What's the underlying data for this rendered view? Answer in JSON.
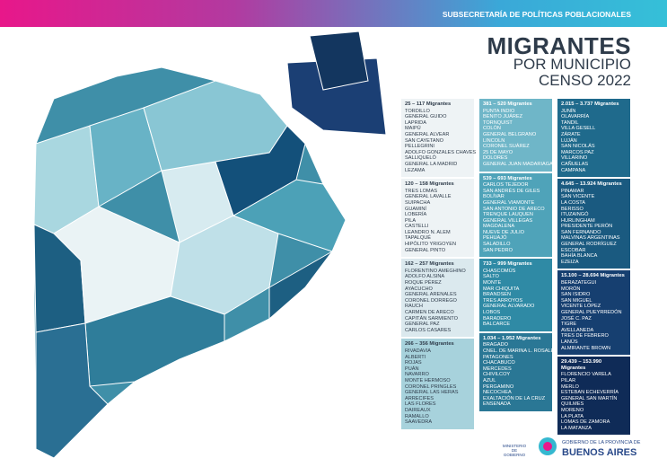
{
  "header": {
    "subtitle": "SUBSECRETARÍA DE POLÍTICAS POBLACIONALES",
    "title_line1": "MIGRANTES",
    "title_line2": "POR MUNICIPIO",
    "title_line3": "CENSO 2022"
  },
  "legend": {
    "columns": [
      [
        {
          "range": "25 – 117 Migrantes",
          "municipalities": [
            "TORDILLO",
            "GENERAL GUIDO",
            "LAPRIDA",
            "MAIPÚ",
            "GENERAL ALVEAR",
            "SAN CAYETANO",
            "PELLEGRINI",
            "ADOLFO GONZALES CHAVES",
            "SALLIQUELÓ",
            "GENERAL LA MADRID",
            "LEZAMA"
          ]
        },
        {
          "range": "120 – 158 Migrantes",
          "municipalities": [
            "TRES LOMAS",
            "GENERAL LAVALLE",
            "SUIPACHA",
            "GUAMINÍ",
            "LOBERÍA",
            "PILA",
            "CASTELLI",
            "LEANDRO N. ALEM",
            "TAPALQUÉ",
            "HIPÓLITO YRIGOYEN",
            "GENERAL PINTO"
          ]
        },
        {
          "range": "162 – 257 Migrantes",
          "municipalities": [
            "FLORENTINO AMEGHINO",
            "ADOLFO ALSINA",
            "ROQUE PÉREZ",
            "AYACUCHO",
            "GENERAL ARENALES",
            "CORONEL DORREGO",
            "RAUCH",
            "CARMEN DE ARECO",
            "CAPITÁN SARMIENTO",
            "GENERAL PAZ",
            "CARLOS CASARES"
          ]
        },
        {
          "range": "266 – 356 Migrantes",
          "municipalities": [
            "RIVADAVIA",
            "ALBERTI",
            "ROJAS",
            "PUÁN",
            "NAVARRO",
            "MONTE HERMOSO",
            "CORONEL PRINGLES",
            "GENERAL LAS HERAS",
            "ARRECIFES",
            "LAS FLORES",
            "DAIREAUX",
            "RAMALLO",
            "SAAVEDRA"
          ]
        }
      ],
      [
        {
          "range": "381 – 520 Migrantes",
          "municipalities": [
            "PUNTA INDIO",
            "BENITO JUÁREZ",
            "TORNQUIST",
            "COLÓN",
            "GENERAL BELGRANO",
            "LINCOLN",
            "CORONEL SUÁREZ",
            "25 DE MAYO",
            "DOLORES",
            "GENERAL JUAN MADARIAGA"
          ]
        },
        {
          "range": "539 – 693 Migrantes",
          "municipalities": [
            "CARLOS TEJEDOR",
            "SAN ANDRÉS DE GILES",
            "BOLÍVAR",
            "GENERAL VIAMONTE",
            "SAN ANTONIO DE ARECO",
            "TRENQUE LAUQUEN",
            "GENERAL VILLEGAS",
            "MAGDALENA",
            "NUEVE DE JULIO",
            "PEHUAJÓ",
            "SALADILLO",
            "SAN PEDRO"
          ]
        },
        {
          "range": "733 – 999 Migrantes",
          "municipalities": [
            "CHASCOMÚS",
            "SALTO",
            "MONTE",
            "MAR CHIQUITA",
            "BRANDSEN",
            "TRES ARROYOS",
            "GENERAL ALVARADO",
            "LOBOS",
            "BARADERO",
            "BALCARCE"
          ]
        },
        {
          "range": "1.034 – 1.952 Migrantes",
          "municipalities": [
            "BRAGADO",
            "CNEL. DE MARINA L. ROSALES",
            "PATAGONES",
            "CHACABUCO",
            "MERCEDES",
            "CHIVILCOY",
            "AZUL",
            "PERGAMINO",
            "NECOCHEA",
            "EXALTACIÓN DE LA CRUZ",
            "ENSENADA"
          ]
        }
      ],
      [
        {
          "range": "2.015 – 3.737 Migrantes",
          "municipalities": [
            "JUNÍN",
            "OLAVARRÍA",
            "TANDIL",
            "VILLA GESELL",
            "ZÁRATE",
            "LUJÁN",
            "SAN NICOLÁS",
            "MARCOS PAZ",
            "VILLARINO",
            "CAÑUELAS",
            "CAMPANA"
          ]
        },
        {
          "range": "4.645 – 13.924 Migrantes",
          "municipalities": [
            "PINAMAR",
            "SAN VICENTE",
            "LA COSTA",
            "BERISSO",
            "ITUZAINGÓ",
            "HURLINGHAM",
            "PRESIDENTE PERÓN",
            "SAN FERNANDO",
            "MALVINAS ARGENTINAS",
            "GENERAL RODRÍGUEZ",
            "ESCOBAR",
            "BAHÍA BLANCA",
            "EZEIZA"
          ]
        },
        {
          "range": "15.100 – 28.694 Migrantes",
          "municipalities": [
            "BERAZATEGUI",
            "MORÓN",
            "SAN ISIDRO",
            "SAN MIGUEL",
            "VICENTE LÓPEZ",
            "GENERAL PUEYRREDÓN",
            "JOSÉ C. PAZ",
            "TIGRE",
            "AVELLANEDA",
            "TRES DE FEBRERO",
            "LANÚS",
            "ALMIRANTE BROWN"
          ]
        },
        {
          "range": "29.439 – 153.990 Migrantes",
          "municipalities": [
            "FLORENCIO VARELA",
            "PILAR",
            "MERLO",
            "ESTEBAN ECHEVERRÍA",
            "GENERAL SAN MARTÍN",
            "QUILMES",
            "MORENO",
            "LA PLATA",
            "LOMAS DE ZAMORA",
            "LA MATANZA"
          ]
        }
      ]
    ]
  },
  "footer": {
    "ministry": "MINISTERIO DE GOBIERNO",
    "government": "GOBIERNO DE LA PROVINCIA DE",
    "province": "BUENOS AIRES"
  }
}
